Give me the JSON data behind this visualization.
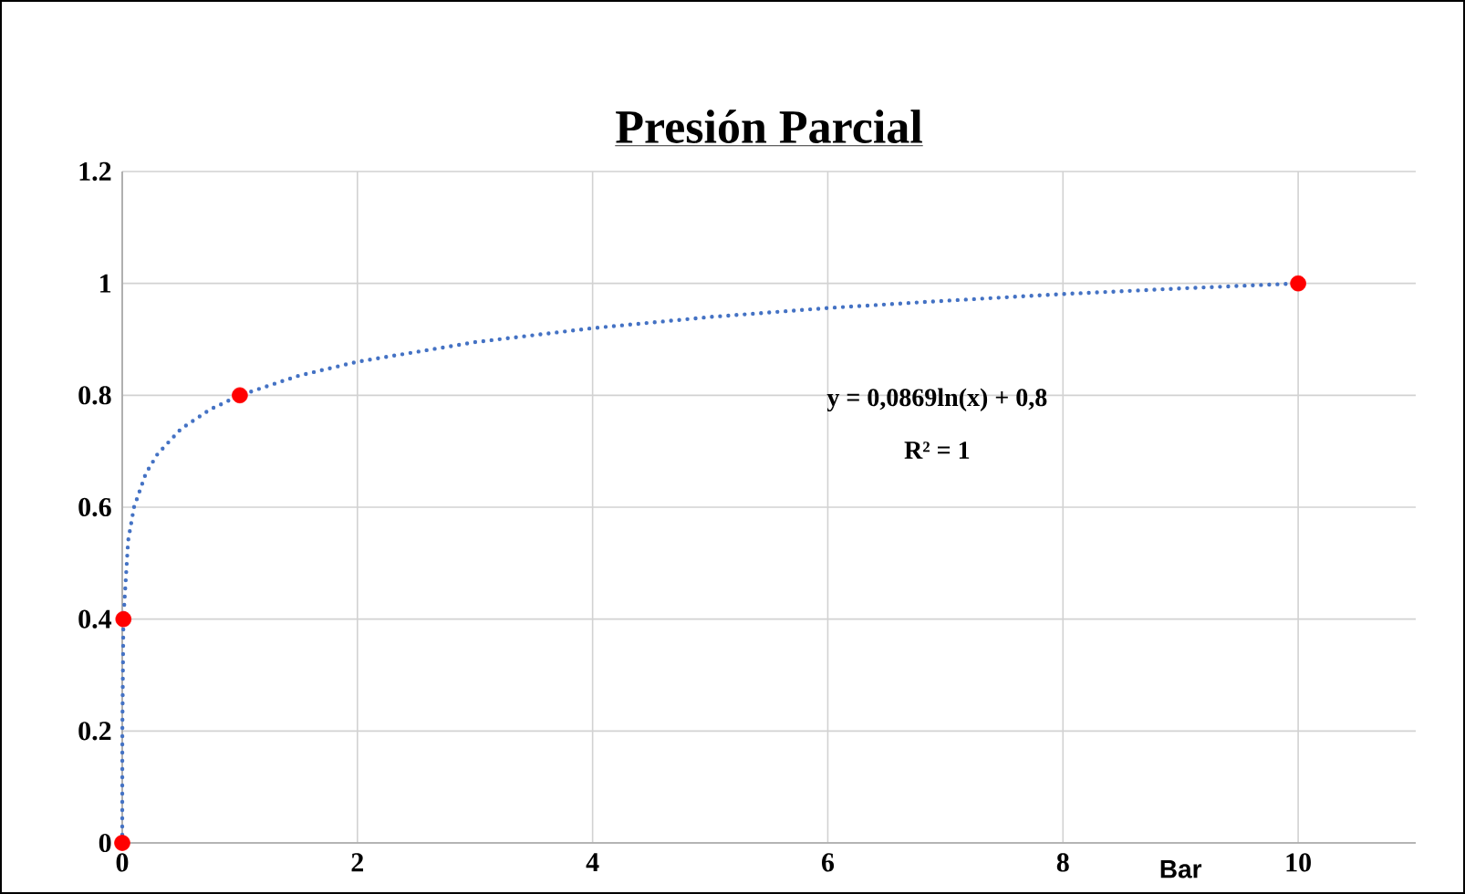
{
  "chart_data": {
    "type": "scatter",
    "title": "Presión Parcial",
    "xlabel": "Bar",
    "annotations": [
      "y = 0,0869ln(x) + 0,8",
      "R² = 1"
    ],
    "xlim": [
      0,
      11
    ],
    "ylim": [
      0,
      1.2
    ],
    "xticks": [
      0,
      2,
      4,
      6,
      8,
      10
    ],
    "yticks": [
      0,
      0.2,
      0.4,
      0.6,
      0.8,
      1,
      1.2
    ],
    "grid": true,
    "series": [
      {
        "type": "line",
        "color": "#4472c4",
        "line_style": "dotted",
        "marker": "none",
        "x": [
          0.0001,
          0.001,
          0.01,
          0.05,
          0.1,
          0.2,
          0.3,
          0.5,
          0.75,
          1,
          1.5,
          2,
          3,
          4,
          5,
          6,
          7,
          8,
          9,
          10
        ],
        "values": [
          0.0,
          0.2,
          0.4,
          0.54,
          0.6,
          0.66,
          0.695,
          0.74,
          0.775,
          0.8,
          0.835,
          0.86,
          0.895,
          0.92,
          0.94,
          0.956,
          0.969,
          0.981,
          0.991,
          1.0
        ]
      },
      {
        "color": "#ff0000",
        "marker": "circle",
        "x": [
          0.0001,
          0.01,
          1,
          10
        ],
        "values": [
          0,
          0.4,
          0.8,
          1
        ]
      }
    ]
  }
}
